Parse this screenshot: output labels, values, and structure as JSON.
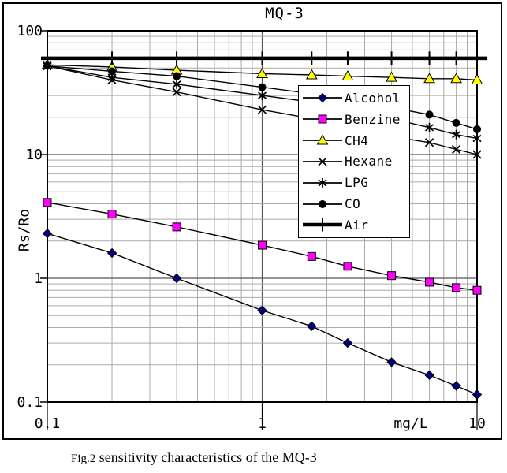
{
  "title": "MQ-3",
  "caption": {
    "prefix": "Fig.2",
    "text": " sensitivity characteristics of the MQ-3"
  },
  "axes": {
    "y_label": "Rs/Ro",
    "x_unit_label": "mg/L",
    "x_tick_labels": [
      "0.1",
      "1",
      "10"
    ],
    "y_tick_labels": [
      "100",
      "10",
      "1",
      "0.1"
    ]
  },
  "colors": {
    "alcohol_marker": "#000080",
    "benzine_marker": "#FF00FF",
    "ch4_marker": "#FFFF00",
    "black": "#000000",
    "grid_minor": "#aaaaaa",
    "grid_major": "#555555"
  },
  "chart_data": {
    "type": "line",
    "title": "MQ-3",
    "xlabel": "mg/L",
    "ylabel": "Rs/Ro",
    "x_scale": "log",
    "y_scale": "log",
    "xlim": [
      0.1,
      10
    ],
    "ylim": [
      0.1,
      100
    ],
    "grid": true,
    "legend_position": "right-middle",
    "x": [
      0.1,
      0.2,
      0.4,
      1,
      1.7,
      2.5,
      4,
      6,
      8,
      10
    ],
    "series": [
      {
        "name": "Alcohol",
        "marker": "diamond",
        "color": "#000080",
        "line_color": "#000000",
        "line_width": 1.4,
        "values": [
          2.3,
          1.6,
          1.0,
          0.55,
          0.41,
          0.3,
          0.21,
          0.165,
          0.135,
          0.115
        ]
      },
      {
        "name": "Benzine",
        "marker": "square",
        "color": "#FF00FF",
        "line_color": "#000000",
        "line_width": 1.4,
        "values": [
          4.1,
          3.3,
          2.6,
          1.85,
          1.5,
          1.25,
          1.05,
          0.93,
          0.84,
          0.8
        ]
      },
      {
        "name": "CH4",
        "marker": "triangle",
        "color": "#FFFF00",
        "line_color": "#000000",
        "line_width": 1.4,
        "values": [
          53,
          51,
          48,
          45,
          44,
          43,
          42,
          41,
          41,
          40
        ]
      },
      {
        "name": "Hexane",
        "marker": "x",
        "color": "#000000",
        "line_color": "#000000",
        "line_width": 1.4,
        "values": [
          52,
          40,
          32,
          23,
          19.5,
          16.5,
          14,
          12.5,
          11,
          10
        ]
      },
      {
        "name": "LPG",
        "marker": "asterisk",
        "color": "#000000",
        "line_color": "#000000",
        "line_width": 1.4,
        "values": [
          52,
          42,
          37,
          30,
          26.5,
          23.5,
          19.5,
          16.5,
          14.5,
          13.5
        ]
      },
      {
        "name": "CO",
        "marker": "circle",
        "color": "#000000",
        "line_color": "#000000",
        "line_width": 1.4,
        "values": [
          52,
          47,
          43,
          35,
          31,
          28,
          24,
          21,
          18,
          16
        ]
      },
      {
        "name": "Air",
        "marker": "plus",
        "color": "#000000",
        "line_color": "#000000",
        "line_width": 4.5,
        "values": [
          60,
          60,
          60,
          60,
          60,
          60,
          60,
          60,
          60,
          60
        ]
      }
    ]
  }
}
